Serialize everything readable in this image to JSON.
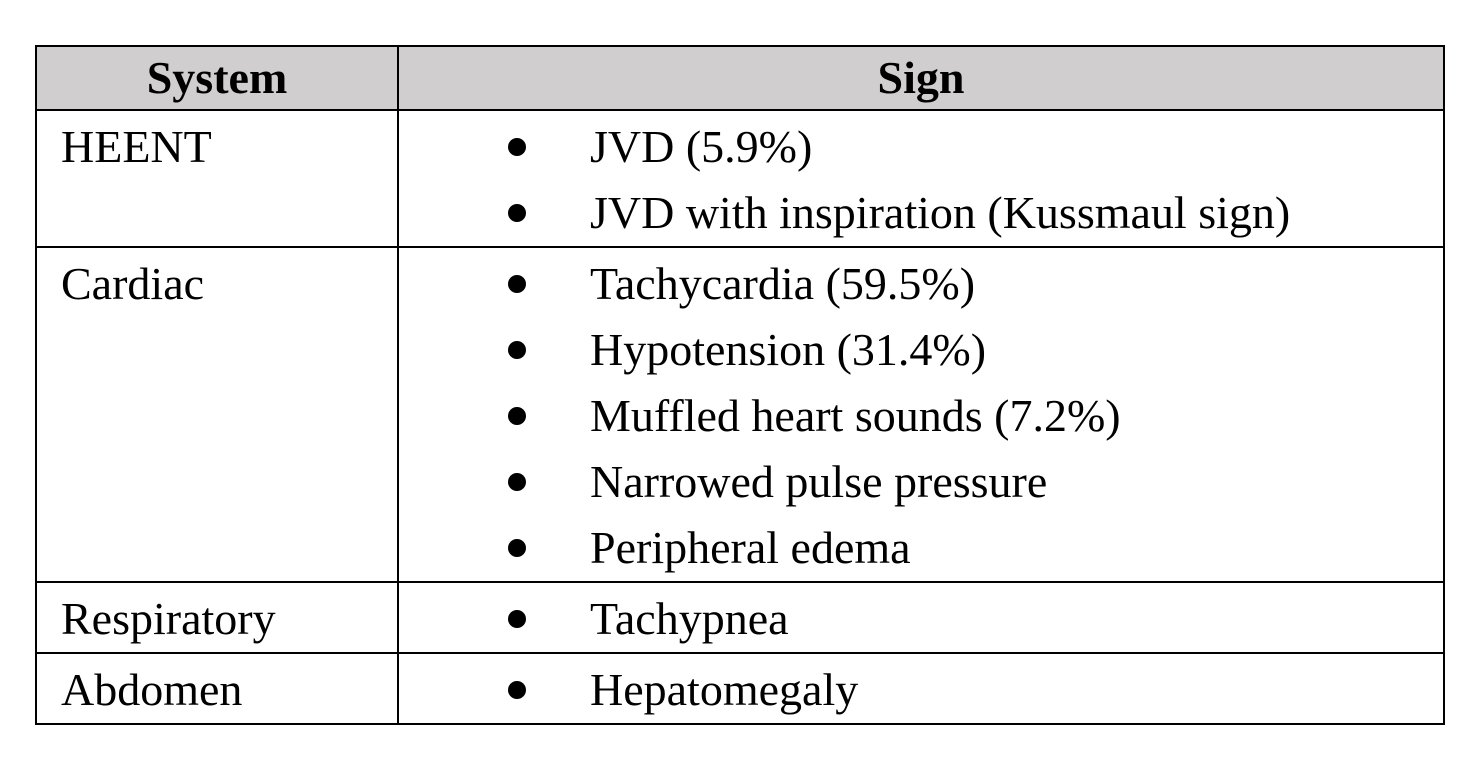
{
  "table": {
    "header": [
      "System",
      "Sign"
    ],
    "rows": [
      {
        "system": "HEENT",
        "signs": [
          "JVD (5.9%)",
          "JVD with inspiration (Kussmaul sign)"
        ]
      },
      {
        "system": "Cardiac",
        "signs": [
          "Tachycardia (59.5%)",
          "Hypotension (31.4%)",
          "Muffled heart sounds (7.2%)",
          "Narrowed pulse pressure",
          "Peripheral edema"
        ]
      },
      {
        "system": "Respiratory",
        "signs": [
          "Tachypnea"
        ]
      },
      {
        "system": "Abdomen",
        "signs": [
          "Hepatomegaly"
        ]
      }
    ]
  }
}
